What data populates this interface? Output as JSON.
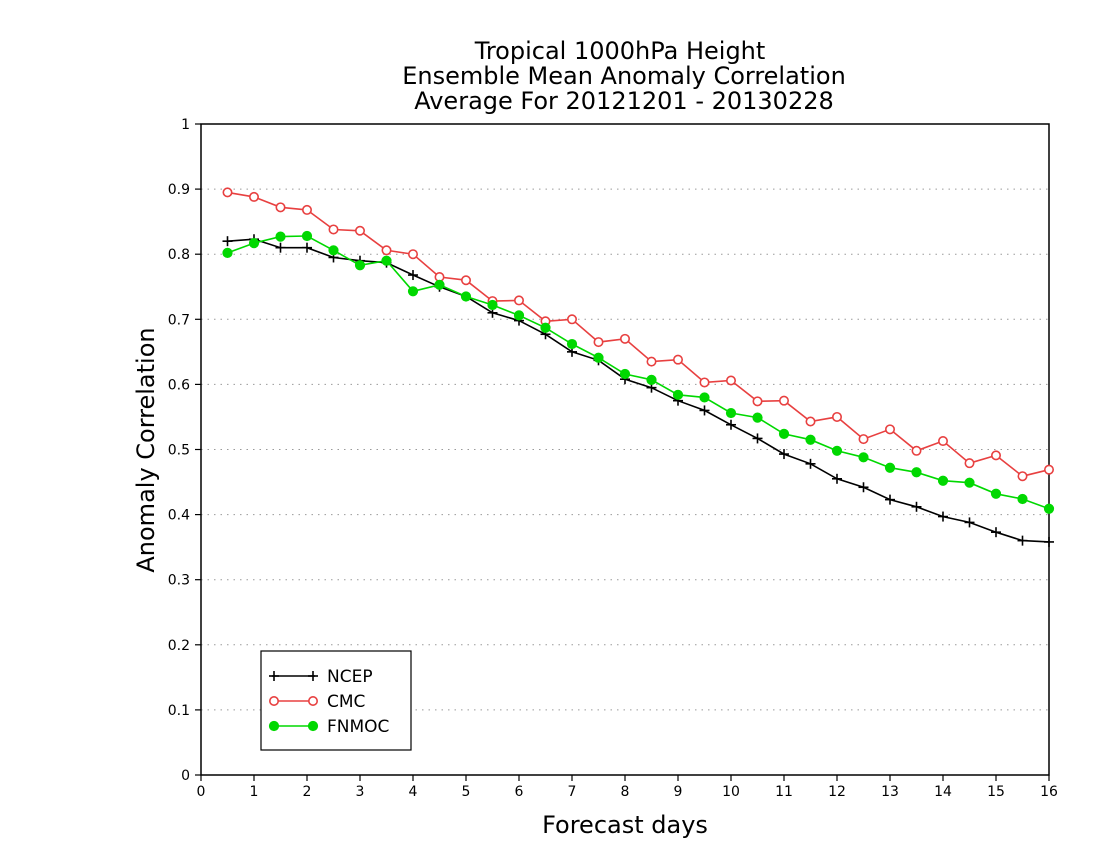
{
  "chart_data": {
    "type": "line",
    "title": [
      "Tropical 1000hPa Height",
      "Ensemble Mean Anomaly Correlation",
      "Average For 20121201 - 20130228"
    ],
    "xlabel": "Forecast days",
    "ylabel": "Anomaly Correlation",
    "xlim": [
      0,
      16
    ],
    "ylim": [
      0,
      1
    ],
    "xticks": [
      "0",
      "1",
      "2",
      "3",
      "4",
      "5",
      "6",
      "7",
      "8",
      "9",
      "10",
      "11",
      "12",
      "13",
      "14",
      "15",
      "16"
    ],
    "yticks": [
      "0",
      "0.1",
      "0.2",
      "0.3",
      "0.4",
      "0.5",
      "0.6",
      "0.7",
      "0.8",
      "0.9",
      "1"
    ],
    "grid": "horizontal dotted",
    "legend": "bottom-left",
    "x": [
      0.5,
      1,
      1.5,
      2,
      2.5,
      3,
      3.5,
      4,
      4.5,
      5,
      5.5,
      6,
      6.5,
      7,
      7.5,
      8,
      8.5,
      9,
      9.5,
      10,
      10.5,
      11,
      11.5,
      12,
      12.5,
      13,
      13.5,
      14,
      14.5,
      15,
      15.5,
      16
    ],
    "series": [
      {
        "name": "NCEP",
        "color": "#000000",
        "marker": "plus",
        "values": [
          0.82,
          0.823,
          0.81,
          0.81,
          0.795,
          0.79,
          0.787,
          0.768,
          0.75,
          0.735,
          0.71,
          0.698,
          0.677,
          0.65,
          0.637,
          0.608,
          0.595,
          0.575,
          0.56,
          0.538,
          0.517,
          0.493,
          0.478,
          0.455,
          0.442,
          0.423,
          0.412,
          0.397,
          0.388,
          0.373,
          0.36,
          0.358
        ]
      },
      {
        "name": "CMC",
        "color": "#e84040",
        "marker": "open-circle",
        "values": [
          0.895,
          0.888,
          0.872,
          0.868,
          0.838,
          0.836,
          0.806,
          0.8,
          0.765,
          0.76,
          0.728,
          0.729,
          0.697,
          0.7,
          0.665,
          0.67,
          0.635,
          0.638,
          0.603,
          0.606,
          0.574,
          0.575,
          0.543,
          0.55,
          0.516,
          0.531,
          0.498,
          0.513,
          0.479,
          0.491,
          0.459,
          0.469
        ]
      },
      {
        "name": "FNMOC",
        "color": "#00d800",
        "marker": "filled-circle",
        "values": [
          0.802,
          0.817,
          0.827,
          0.828,
          0.806,
          0.783,
          0.79,
          0.743,
          0.753,
          0.735,
          0.722,
          0.706,
          0.687,
          0.662,
          0.641,
          0.616,
          0.607,
          0.584,
          0.58,
          0.556,
          0.549,
          0.524,
          0.515,
          0.498,
          0.488,
          0.472,
          0.465,
          0.452,
          0.449,
          0.432,
          0.424,
          0.409
        ]
      }
    ]
  }
}
